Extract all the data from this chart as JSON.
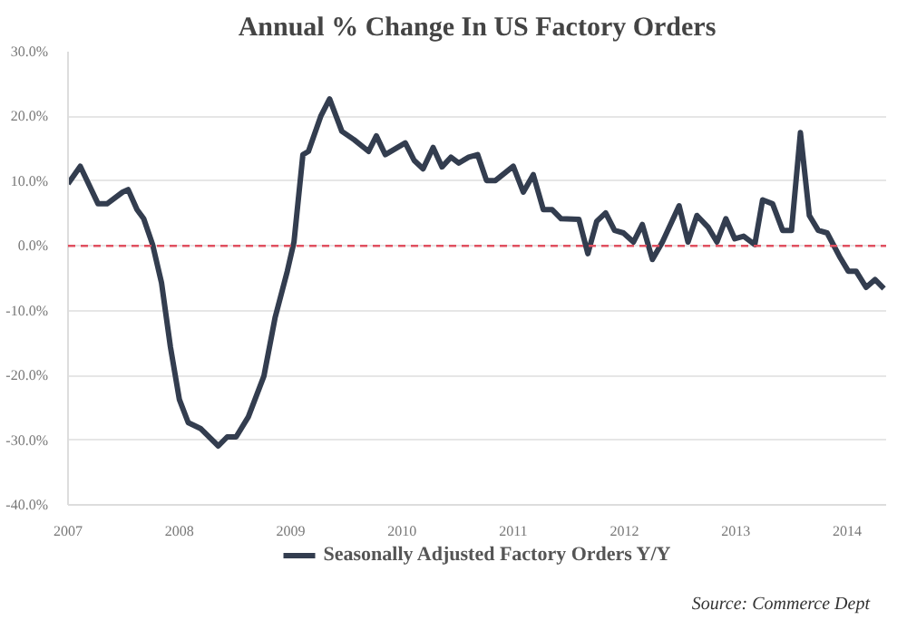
{
  "chart_data": {
    "type": "line",
    "title": "Annual % Change In US Factory Orders",
    "x": [
      2007.0,
      2007.11,
      2007.27,
      2007.35,
      2007.49,
      2007.54,
      2007.62,
      2007.68,
      2007.76,
      2007.84,
      2007.92,
      2008.0,
      2008.08,
      2008.19,
      2008.35,
      2008.43,
      2008.51,
      2008.62,
      2008.76,
      2008.86,
      2008.97,
      2009.03,
      2009.11,
      2009.16,
      2009.27,
      2009.35,
      2009.46,
      2009.57,
      2009.7,
      2009.77,
      2009.85,
      2010.03,
      2010.11,
      2010.19,
      2010.28,
      2010.36,
      2010.44,
      2010.51,
      2010.6,
      2010.68,
      2010.76,
      2010.84,
      2011.0,
      2011.09,
      2011.18,
      2011.27,
      2011.35,
      2011.43,
      2011.59,
      2011.67,
      2011.75,
      2011.83,
      2011.91,
      2011.99,
      2012.08,
      2012.16,
      2012.25,
      2012.34,
      2012.49,
      2012.57,
      2012.65,
      2012.75,
      2012.83,
      2012.91,
      2012.99,
      2013.07,
      2013.17,
      2013.24,
      2013.33,
      2013.42,
      2013.5,
      2013.58,
      2013.66,
      2013.74,
      2013.82,
      2013.93,
      2014.01,
      2014.08,
      2014.17,
      2014.25,
      2014.33
    ],
    "series": [
      {
        "name": "Seasonally Adjusted Factory Orders Y/Y",
        "color": "#333d4f",
        "values": [
          9.6,
          12.3,
          6.5,
          6.5,
          8.3,
          8.7,
          5.6,
          4.2,
          0.2,
          -5.7,
          -15.6,
          -23.7,
          -27.3,
          -28.2,
          -30.9,
          -29.5,
          -29.5,
          -26.4,
          -20.1,
          -11.1,
          -3.9,
          0.6,
          14.1,
          14.6,
          20.0,
          22.7,
          17.7,
          16.4,
          14.6,
          17.0,
          14.1,
          15.9,
          13.2,
          11.9,
          15.2,
          12.2,
          13.7,
          12.8,
          13.7,
          14.1,
          10.1,
          10.1,
          12.3,
          8.3,
          11.0,
          5.6,
          5.6,
          4.2,
          4.1,
          -1.2,
          3.8,
          5.1,
          2.4,
          2.0,
          0.6,
          3.3,
          -2.1,
          0.6,
          6.2,
          0.6,
          4.7,
          2.9,
          0.6,
          4.2,
          1.1,
          1.5,
          0.2,
          7.1,
          6.5,
          2.4,
          2.4,
          17.5,
          4.7,
          2.4,
          2.0,
          -1.6,
          -3.9,
          -3.9,
          -6.4,
          -5.2,
          -6.6
        ]
      }
    ],
    "xlim": [
      2007.0,
      2014.35
    ],
    "xticks": [
      {
        "value": 2007,
        "label": "2007"
      },
      {
        "value": 2008,
        "label": "2008"
      },
      {
        "value": 2009,
        "label": "2009"
      },
      {
        "value": 2010,
        "label": "2010"
      },
      {
        "value": 2011,
        "label": "2011"
      },
      {
        "value": 2012,
        "label": "2012"
      },
      {
        "value": 2013,
        "label": "2013"
      },
      {
        "value": 2014,
        "label": "2014"
      }
    ],
    "ylim": [
      -40,
      30
    ],
    "yticks": [
      {
        "value": -40,
        "label": "-40.0%"
      },
      {
        "value": -30,
        "label": "-30.0%"
      },
      {
        "value": -20,
        "label": "-20.0%"
      },
      {
        "value": -10,
        "label": "-10.0%"
      },
      {
        "value": 0,
        "label": "0.0%"
      },
      {
        "value": 10,
        "label": "10.0%"
      },
      {
        "value": 20,
        "label": "20.0%"
      },
      {
        "value": 30,
        "label": "30.0%"
      }
    ],
    "ref_lines": [
      {
        "axis": "y",
        "value": 0,
        "label": null,
        "color": "#e05060",
        "line_style": "dashed"
      }
    ],
    "grid": "y",
    "legend": "bottom",
    "marker": "none",
    "line_style": "solid",
    "annotations": [
      "Source: Commerce Dept"
    ]
  }
}
